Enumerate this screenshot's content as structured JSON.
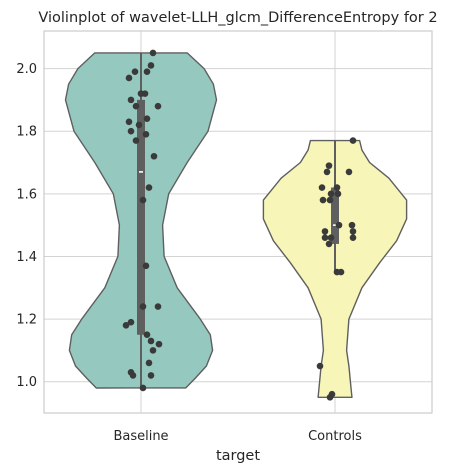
{
  "chart_data": {
    "type": "violin",
    "title": "Violinplot of wavelet-LLH_glcm_DifferenceEntropy for 2",
    "xlabel": "target",
    "ylabel": "",
    "ylim": [
      0.9,
      2.12
    ],
    "yticks": [
      "1.0",
      "1.2",
      "1.4",
      "1.6",
      "1.8",
      "2.0"
    ],
    "grid": true,
    "categories": [
      "Baseline",
      "Controls"
    ],
    "series": [
      {
        "category": "Baseline",
        "color": "#95c9bf",
        "min": 0.98,
        "max": 2.05,
        "q1": 1.15,
        "median": 1.67,
        "q3": 1.9,
        "whisker_low": 0.98,
        "whisker_high": 2.05,
        "density": [
          [
            0.98,
            0.58
          ],
          [
            1.01,
            0.7
          ],
          [
            1.05,
            0.85
          ],
          [
            1.1,
            0.93
          ],
          [
            1.15,
            0.9
          ],
          [
            1.2,
            0.77
          ],
          [
            1.3,
            0.47
          ],
          [
            1.4,
            0.3
          ],
          [
            1.5,
            0.28
          ],
          [
            1.6,
            0.36
          ],
          [
            1.7,
            0.6
          ],
          [
            1.8,
            0.87
          ],
          [
            1.9,
            0.98
          ],
          [
            1.95,
            0.94
          ],
          [
            2.0,
            0.82
          ],
          [
            2.05,
            0.6
          ]
        ],
        "points": [
          [
            0.02,
            0.98
          ],
          [
            -0.1,
            1.03
          ],
          [
            -0.08,
            1.02
          ],
          [
            0.08,
            1.06
          ],
          [
            0.1,
            1.02
          ],
          [
            0.12,
            1.1
          ],
          [
            0.18,
            1.12
          ],
          [
            0.1,
            1.13
          ],
          [
            0.06,
            1.15
          ],
          [
            -0.15,
            1.18
          ],
          [
            -0.1,
            1.19
          ],
          [
            0.02,
            1.24
          ],
          [
            0.17,
            1.24
          ],
          [
            0.05,
            1.37
          ],
          [
            0.02,
            1.58
          ],
          [
            0.08,
            1.62
          ],
          [
            0.13,
            1.72
          ],
          [
            -0.05,
            1.77
          ],
          [
            0.05,
            1.79
          ],
          [
            -0.1,
            1.8
          ],
          [
            -0.02,
            1.82
          ],
          [
            -0.12,
            1.83
          ],
          [
            0.06,
            1.84
          ],
          [
            -0.05,
            1.88
          ],
          [
            0.17,
            1.88
          ],
          [
            -0.1,
            1.9
          ],
          [
            0.0,
            1.92
          ],
          [
            0.04,
            1.92
          ],
          [
            -0.12,
            1.97
          ],
          [
            -0.06,
            1.99
          ],
          [
            0.06,
            1.99
          ],
          [
            0.1,
            2.01
          ],
          [
            0.12,
            2.05
          ]
        ]
      },
      {
        "category": "Controls",
        "color": "#f7f6b8",
        "min": 0.95,
        "max": 1.77,
        "q1": 1.44,
        "median": 1.5,
        "q3": 1.62,
        "whisker_low": 1.35,
        "whisker_high": 1.77,
        "density": [
          [
            0.95,
            0.22
          ],
          [
            1.0,
            0.2
          ],
          [
            1.05,
            0.18
          ],
          [
            1.1,
            0.15
          ],
          [
            1.2,
            0.18
          ],
          [
            1.3,
            0.35
          ],
          [
            1.38,
            0.58
          ],
          [
            1.45,
            0.8
          ],
          [
            1.52,
            0.93
          ],
          [
            1.58,
            0.93
          ],
          [
            1.65,
            0.7
          ],
          [
            1.7,
            0.45
          ],
          [
            1.74,
            0.35
          ],
          [
            1.77,
            0.32
          ]
        ],
        "points": [
          [
            -0.05,
            0.95
          ],
          [
            -0.03,
            0.96
          ],
          [
            -0.15,
            1.05
          ],
          [
            0.06,
            1.35
          ],
          [
            0.02,
            1.35
          ],
          [
            -0.06,
            1.44
          ],
          [
            -0.1,
            1.46
          ],
          [
            -0.04,
            1.46
          ],
          [
            0.18,
            1.46
          ],
          [
            -0.1,
            1.48
          ],
          [
            0.18,
            1.48
          ],
          [
            0.04,
            1.5
          ],
          [
            0.17,
            1.5
          ],
          [
            -0.12,
            1.58
          ],
          [
            -0.05,
            1.58
          ],
          [
            -0.04,
            1.6
          ],
          [
            0.03,
            1.6
          ],
          [
            0.02,
            1.62
          ],
          [
            -0.13,
            1.62
          ],
          [
            -0.08,
            1.67
          ],
          [
            0.14,
            1.67
          ],
          [
            -0.06,
            1.69
          ],
          [
            0.18,
            1.77
          ]
        ]
      }
    ]
  }
}
